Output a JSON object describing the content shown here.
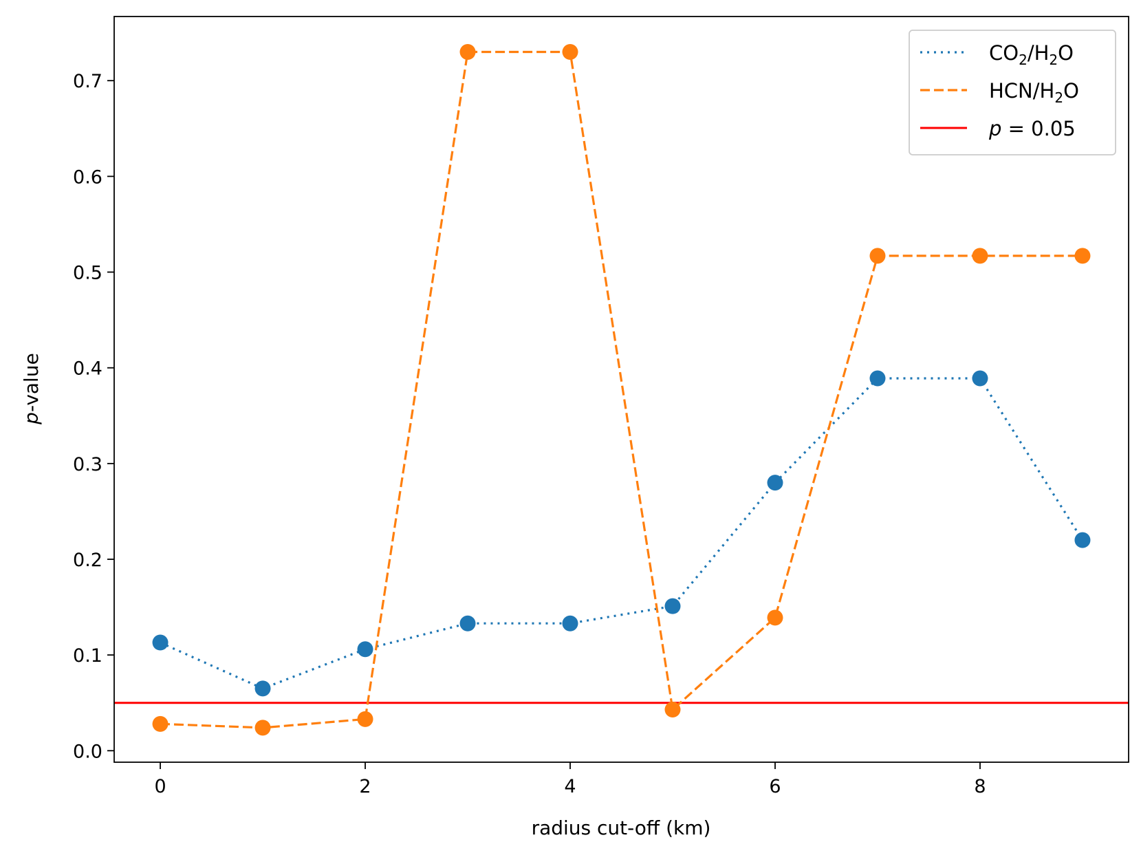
{
  "chart_data": {
    "type": "line",
    "xlabel": "radius cut-off (km)",
    "ylabel": "p-value",
    "xlim": [
      -0.45,
      9.45
    ],
    "ylim": [
      -0.012,
      0.767
    ],
    "xticks": [
      0,
      2,
      4,
      6,
      8
    ],
    "yticks": [
      0.0,
      0.1,
      0.2,
      0.3,
      0.4,
      0.5,
      0.6,
      0.7
    ],
    "xtick_labels": [
      "0",
      "2",
      "4",
      "6",
      "8"
    ],
    "ytick_labels": [
      "0.0",
      "0.1",
      "0.2",
      "0.3",
      "0.4",
      "0.5",
      "0.6",
      "0.7"
    ],
    "grid": false,
    "legend_position": "top-right",
    "series": [
      {
        "name": "CO2/H2O",
        "legend_parts": {
          "base": "CO",
          "sub1": "2",
          "mid": "/H",
          "sub2": "2",
          "end": "O"
        },
        "style": "dotted",
        "color": "#1f77b4",
        "x": [
          0,
          1,
          2,
          3,
          4,
          5,
          6,
          7,
          8,
          9
        ],
        "y": [
          0.113,
          0.065,
          0.106,
          0.133,
          0.133,
          0.151,
          0.28,
          0.389,
          0.389,
          0.22
        ]
      },
      {
        "name": "HCN/H2O",
        "legend_parts": {
          "base": "HCN",
          "sub1": "",
          "mid": "/H",
          "sub2": "2",
          "end": "O"
        },
        "style": "dashed",
        "color": "#ff7f0e",
        "x": [
          0,
          1,
          2,
          3,
          4,
          5,
          6,
          7,
          8,
          9
        ],
        "y": [
          0.028,
          0.024,
          0.033,
          0.73,
          0.73,
          0.043,
          0.139,
          0.517,
          0.517,
          0.517
        ]
      }
    ],
    "reference_line": {
      "name": "p = 0.05",
      "legend_parts": {
        "italic": "p",
        "rest": " = 0.05"
      },
      "y": 0.05,
      "color": "#ff0000"
    }
  }
}
